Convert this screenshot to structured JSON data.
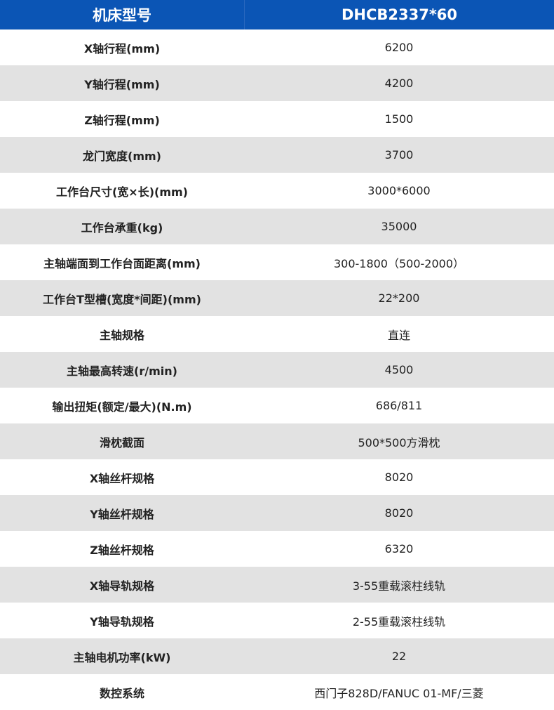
{
  "header": {
    "label": "机床型号",
    "value": "DHCB2337*60"
  },
  "colors": {
    "header_bg": "#0b55b5",
    "stripe": "#e2e2e2"
  },
  "rows": [
    {
      "label": "X轴行程(mm)",
      "value": "6200"
    },
    {
      "label": "Y轴行程(mm)",
      "value": "4200"
    },
    {
      "label": "Z轴行程(mm)",
      "value": "1500"
    },
    {
      "label": "龙门宽度(mm)",
      "value": "3700"
    },
    {
      "label": "工作台尺寸(宽×长)(mm)",
      "value": "3000*6000"
    },
    {
      "label": "工作台承重(kg)",
      "value": "35000"
    },
    {
      "label": "主轴端面到工作台面距离(mm)",
      "value": "300-1800（500-2000）"
    },
    {
      "label": "工作台T型槽(宽度*间距)(mm)",
      "value": "22*200"
    },
    {
      "label": "主轴规格",
      "value": "直连"
    },
    {
      "label": "主轴最高转速(r/min)",
      "value": "4500"
    },
    {
      "label": "输出扭矩(额定/最大)(N.m)",
      "value": "686/811"
    },
    {
      "label": "滑枕截面",
      "value": "500*500方滑枕"
    },
    {
      "label": "X轴丝杆规格",
      "value": "8020"
    },
    {
      "label": "Y轴丝杆规格",
      "value": "8020"
    },
    {
      "label": "Z轴丝杆规格",
      "value": "6320"
    },
    {
      "label": "X轴导轨规格",
      "value": "3-55重载滚柱线轨"
    },
    {
      "label": "Y轴导轨规格",
      "value": "2-55重载滚柱线轨"
    },
    {
      "label": "主轴电机功率(kW)",
      "value": "22"
    },
    {
      "label": "数控系统",
      "value": "西门子828D/FANUC 01-MF/三菱"
    }
  ]
}
